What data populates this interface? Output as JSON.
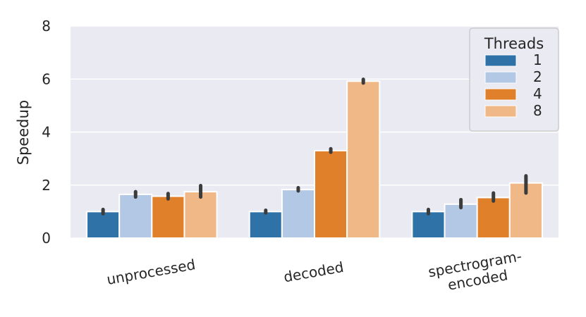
{
  "chart_data": {
    "type": "bar",
    "title": "",
    "xlabel": "",
    "ylabel": "Speedup",
    "ylim": [
      0,
      8
    ],
    "yticks": [
      "0",
      "2",
      "4",
      "6",
      "8"
    ],
    "grid": true,
    "categories": [
      [
        "unprocessed"
      ],
      [
        "decoded"
      ],
      [
        "spectrogram-",
        "encoded"
      ]
    ],
    "legend": {
      "title": "Threads",
      "placement": "top-right"
    },
    "series": [
      {
        "name": "1",
        "color": "#2e72a8",
        "values": [
          1.0,
          1.0,
          1.0
        ],
        "err_low": [
          0.92,
          0.95,
          0.92
        ],
        "err_high": [
          1.08,
          1.05,
          1.08
        ]
      },
      {
        "name": "2",
        "color": "#b3c8e4",
        "values": [
          1.65,
          1.83,
          1.28
        ],
        "err_low": [
          1.55,
          1.78,
          1.15
        ],
        "err_high": [
          1.75,
          1.9,
          1.45
        ]
      },
      {
        "name": "4",
        "color": "#e0802b",
        "values": [
          1.58,
          3.3,
          1.53
        ],
        "err_low": [
          1.48,
          3.24,
          1.4
        ],
        "err_high": [
          1.68,
          3.37,
          1.7
        ]
      },
      {
        "name": "8",
        "color": "#efb886",
        "values": [
          1.75,
          5.92,
          2.08
        ],
        "err_low": [
          1.55,
          5.85,
          1.7
        ],
        "err_high": [
          1.98,
          5.99,
          2.35
        ]
      }
    ]
  }
}
